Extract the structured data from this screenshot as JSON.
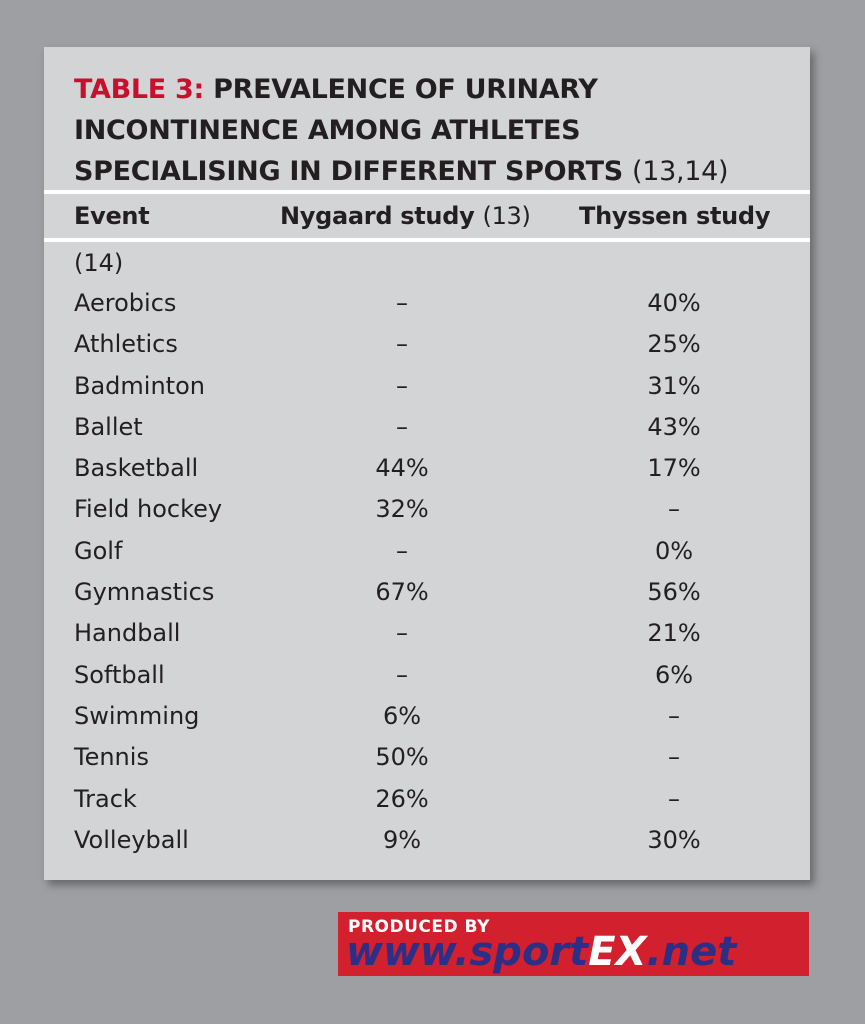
{
  "table": {
    "title_label": "TABLE 3:",
    "title_text_1": "PREVALENCE OF URINARY",
    "title_text_2": "INCONTINENCE AMONG ATHLETES",
    "title_text_3": "SPECIALISING IN DIFFERENT SPORTS",
    "title_refs": "(13,14)",
    "headers": {
      "event": "Event",
      "nygaard": "Nygaard study",
      "nygaard_ref": "(13)",
      "thyssen": "Thyssen study",
      "thyssen_ref_continued": "(14)"
    },
    "rows": [
      {
        "event": "Aerobics",
        "nygaard": "–",
        "thyssen": "40%"
      },
      {
        "event": "Athletics",
        "nygaard": "–",
        "thyssen": "25%"
      },
      {
        "event": "Badminton",
        "nygaard": "–",
        "thyssen": "31%"
      },
      {
        "event": "Ballet",
        "nygaard": "–",
        "thyssen": "43%"
      },
      {
        "event": "Basketball",
        "nygaard": "44%",
        "thyssen": "17%"
      },
      {
        "event": "Field hockey",
        "nygaard": "32%",
        "thyssen": "–"
      },
      {
        "event": "Golf",
        "nygaard": "–",
        "thyssen": "0%"
      },
      {
        "event": "Gymnastics",
        "nygaard": "67%",
        "thyssen": "56%"
      },
      {
        "event": "Handball",
        "nygaard": "–",
        "thyssen": "21%"
      },
      {
        "event": "Softball",
        "nygaard": "–",
        "thyssen": "6%"
      },
      {
        "event": "Swimming",
        "nygaard": "6%",
        "thyssen": "–"
      },
      {
        "event": "Tennis",
        "nygaard": "50%",
        "thyssen": "–"
      },
      {
        "event": "Track",
        "nygaard": "26%",
        "thyssen": "–"
      },
      {
        "event": "Volleyball",
        "nygaard": "9%",
        "thyssen": "30%"
      }
    ]
  },
  "banner": {
    "produced_by": "PRODUCED BY",
    "url_part_1": "www.sport",
    "url_part_2": "EX",
    "url_part_3": ".net"
  },
  "colors": {
    "accent": "#c8102e",
    "banner_red": "#d2202f",
    "banner_blue": "#2b2f86",
    "card_bg": "#d3d4d6",
    "page_bg": "#9d9fa2"
  }
}
